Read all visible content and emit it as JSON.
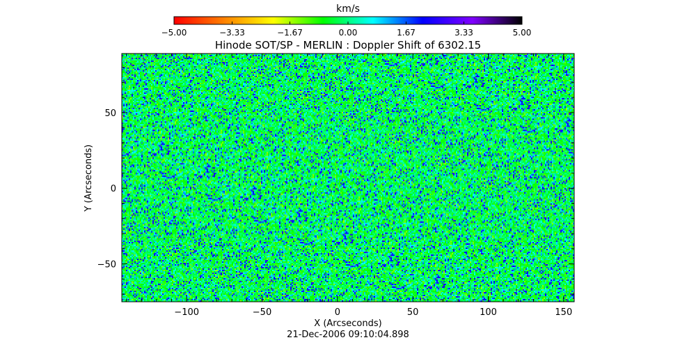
{
  "chart_data": {
    "type": "heatmap",
    "title": "Hinode SOT/SP - MERLIN : Doppler Shift of 6302.15",
    "xlabel": "X (Arcseconds)",
    "ylabel": "Y (Arcseconds)",
    "footer": "21-Dec-2006 09:10:04.898",
    "xlim": [
      -143,
      157
    ],
    "ylim": [
      -75,
      89
    ],
    "xticks": [
      -100,
      -50,
      0,
      50,
      100,
      150
    ],
    "xtick_labels": [
      "−100",
      "−50",
      "0",
      "50",
      "100",
      "150"
    ],
    "yticks": [
      -50,
      0,
      50
    ],
    "ytick_labels": [
      "−50",
      "0",
      "50"
    ],
    "colorbar": {
      "label": "km/s",
      "range": [
        -5.0,
        5.0
      ],
      "ticks": [
        -5.0,
        -3.33,
        -1.67,
        0.0,
        1.67,
        3.33,
        5.0
      ],
      "tick_labels": [
        "−5.00",
        "−3.33",
        "−1.67",
        "0.00",
        "1.67",
        "3.33",
        "5.00"
      ],
      "colormap": [
        "#ff0000",
        "#ff8000",
        "#ffff00",
        "#00ff00",
        "#00ffff",
        "#0000ff",
        "#7f00ff",
        "#000000"
      ]
    },
    "field": {
      "description_of_values": "speckled Doppler velocity map, values concentrated near 0 with excursions",
      "typical_mean": 0.0
    }
  }
}
